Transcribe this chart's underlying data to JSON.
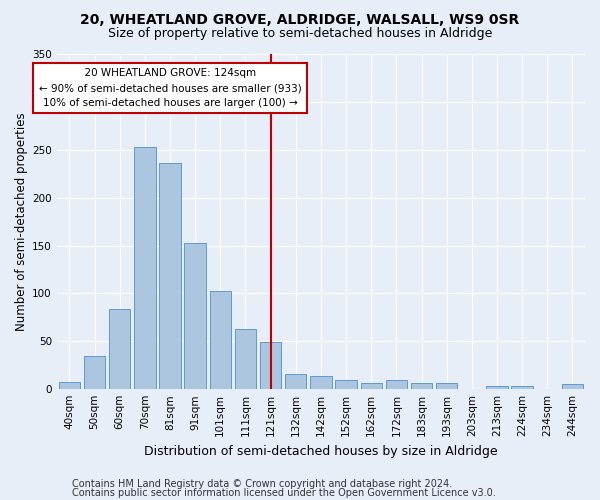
{
  "title": "20, WHEATLAND GROVE, ALDRIDGE, WALSALL, WS9 0SR",
  "subtitle": "Size of property relative to semi-detached houses in Aldridge",
  "xlabel": "Distribution of semi-detached houses by size in Aldridge",
  "ylabel": "Number of semi-detached properties",
  "categories": [
    "40sqm",
    "50sqm",
    "60sqm",
    "70sqm",
    "81sqm",
    "91sqm",
    "101sqm",
    "111sqm",
    "121sqm",
    "132sqm",
    "142sqm",
    "152sqm",
    "162sqm",
    "172sqm",
    "183sqm",
    "193sqm",
    "203sqm",
    "213sqm",
    "224sqm",
    "234sqm",
    "244sqm"
  ],
  "values": [
    7,
    35,
    84,
    253,
    236,
    153,
    103,
    63,
    49,
    16,
    14,
    10,
    6,
    10,
    6,
    6,
    0,
    3,
    3,
    0,
    5
  ],
  "bar_color": "#adc6e0",
  "bar_edge_color": "#5b9bd5",
  "highlight_color": "#c00000",
  "vline_index": 8.5,
  "annotation_title": "20 WHEATLAND GROVE: 124sqm",
  "annotation_line1": "← 90% of semi-detached houses are smaller (933)",
  "annotation_line2": "10% of semi-detached houses are larger (100) →",
  "annotation_box_color": "#c00000",
  "ylim": [
    0,
    350
  ],
  "yticks": [
    0,
    50,
    100,
    150,
    200,
    250,
    300,
    350
  ],
  "footer1": "Contains HM Land Registry data © Crown copyright and database right 2024.",
  "footer2": "Contains public sector information licensed under the Open Government Licence v3.0.",
  "bg_color": "#e8eef8",
  "plot_bg_color": "#e8eef8",
  "title_fontsize": 10,
  "subtitle_fontsize": 9,
  "xlabel_fontsize": 9,
  "ylabel_fontsize": 8.5,
  "tick_fontsize": 7.5,
  "footer_fontsize": 7
}
